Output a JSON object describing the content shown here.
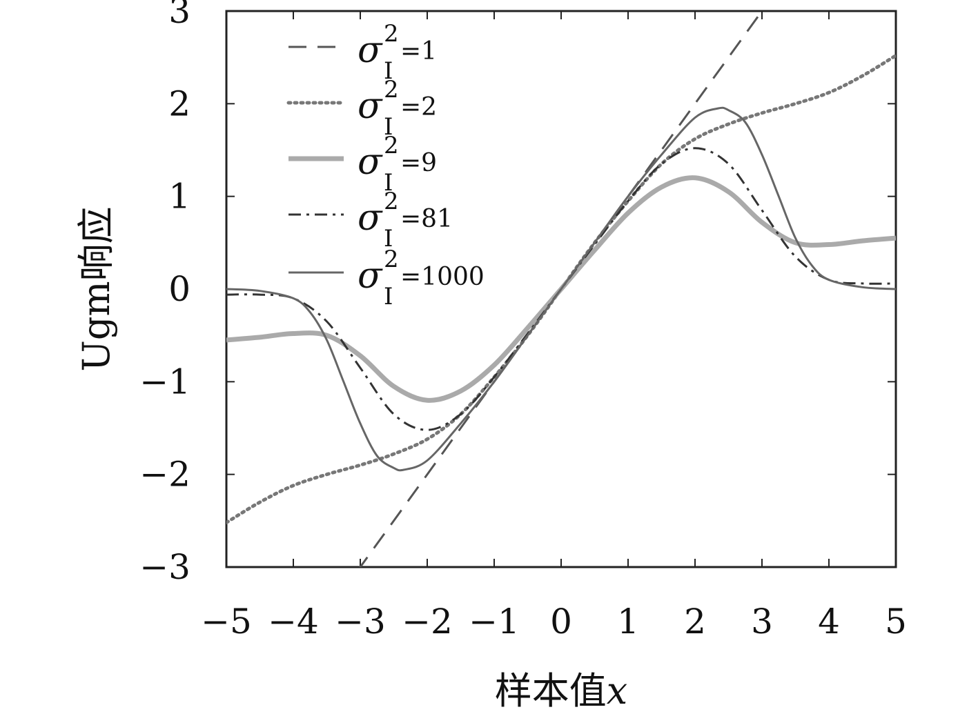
{
  "chart_data": {
    "type": "line",
    "title": "",
    "xlabel_prefix": "样本值",
    "xlabel_var": "x",
    "ylabel": "Ugm响应",
    "xlim": [
      -5,
      5
    ],
    "ylim": [
      -3,
      3
    ],
    "xticks": [
      -5,
      -4,
      -3,
      -2,
      -1,
      0,
      1,
      2,
      3,
      4,
      5
    ],
    "yticks": [
      -3,
      -2,
      -1,
      0,
      1,
      2,
      3
    ],
    "xtick_labels": [
      "−5",
      "−4",
      "−3",
      "−2",
      "−1",
      "0",
      "1",
      "2",
      "3",
      "4",
      "5"
    ],
    "ytick_labels": [
      "−3",
      "−2",
      "−1",
      "0",
      "1",
      "2",
      "3"
    ],
    "legend_placement": "top-left",
    "series": [
      {
        "name": "σ²I=1",
        "legend_sigma": "σ",
        "legend_sup": "2",
        "legend_sub": "I",
        "legend_rest": "=1",
        "style": "dashed",
        "color": "#555555",
        "x": [
          -3.05,
          -2,
          -1,
          0,
          1,
          2,
          3.05
        ],
        "y": [
          -3.05,
          -2,
          -1,
          0,
          1,
          2,
          3.05
        ]
      },
      {
        "name": "σ²I=2",
        "legend_sigma": "σ",
        "legend_sup": "2",
        "legend_sub": "I",
        "legend_rest": "=2",
        "style": "dotted",
        "color": "#777777",
        "x": [
          -5,
          -4.5,
          -4,
          -3.5,
          -3,
          -2.5,
          -2,
          -1.5,
          -1,
          -0.5,
          0,
          0.5,
          1,
          1.5,
          2,
          2.5,
          3,
          3.5,
          4,
          4.5,
          5
        ],
        "y": [
          -2.52,
          -2.3,
          -2.12,
          -2.0,
          -1.9,
          -1.78,
          -1.62,
          -1.35,
          -0.95,
          -0.5,
          0,
          0.5,
          0.95,
          1.35,
          1.62,
          1.78,
          1.9,
          2.0,
          2.12,
          2.3,
          2.52
        ]
      },
      {
        "name": "σ²I=9",
        "legend_sigma": "σ",
        "legend_sup": "2",
        "legend_sub": "I",
        "legend_rest": "=9",
        "style": "thick-light",
        "color": "#aaaaaa",
        "x": [
          -5,
          -4.5,
          -4,
          -3.5,
          -3,
          -2.5,
          -2,
          -1.5,
          -1,
          -0.5,
          0,
          0.5,
          1,
          1.5,
          2,
          2.5,
          3,
          3.5,
          4,
          4.5,
          5
        ],
        "y": [
          -0.55,
          -0.52,
          -0.48,
          -0.5,
          -0.72,
          -1.05,
          -1.2,
          -1.1,
          -0.82,
          -0.42,
          0,
          0.42,
          0.82,
          1.1,
          1.2,
          1.05,
          0.72,
          0.5,
          0.48,
          0.52,
          0.55
        ]
      },
      {
        "name": "σ²I =81",
        "legend_sigma": "σ",
        "legend_sup": "2",
        "legend_sub": "I",
        "legend_rest": " =81",
        "style": "dashdot",
        "color": "#333333",
        "x": [
          -5,
          -4.5,
          -4,
          -3.5,
          -3,
          -2.5,
          -2,
          -1.5,
          -1,
          -0.5,
          0,
          0.5,
          1,
          1.5,
          2,
          2.5,
          3,
          3.5,
          4,
          4.5,
          5
        ],
        "y": [
          -0.06,
          -0.06,
          -0.1,
          -0.35,
          -0.85,
          -1.35,
          -1.52,
          -1.35,
          -0.95,
          -0.48,
          0,
          0.48,
          0.95,
          1.35,
          1.52,
          1.35,
          0.85,
          0.35,
          0.1,
          0.06,
          0.06
        ]
      },
      {
        "name": "σ²I=1000",
        "legend_sigma": "σ",
        "legend_sup": "2",
        "legend_sub": "I",
        "legend_rest": "=1000",
        "style": "solid",
        "color": "#666666",
        "x": [
          -5,
          -4.5,
          -4,
          -3.75,
          -3.5,
          -3.25,
          -3,
          -2.75,
          -2.5,
          -2.35,
          -2,
          -1.5,
          -1,
          -0.5,
          0,
          0.5,
          1,
          1.5,
          2,
          2.35,
          2.5,
          2.75,
          3,
          3.25,
          3.5,
          3.75,
          4,
          4.5,
          5
        ],
        "y": [
          0,
          -0.02,
          -0.1,
          -0.25,
          -0.55,
          -1.0,
          -1.45,
          -1.8,
          -1.93,
          -1.95,
          -1.85,
          -1.45,
          -1.0,
          -0.5,
          0,
          0.5,
          1.0,
          1.45,
          1.85,
          1.95,
          1.93,
          1.8,
          1.45,
          1.0,
          0.55,
          0.25,
          0.1,
          0.02,
          0
        ]
      }
    ]
  }
}
